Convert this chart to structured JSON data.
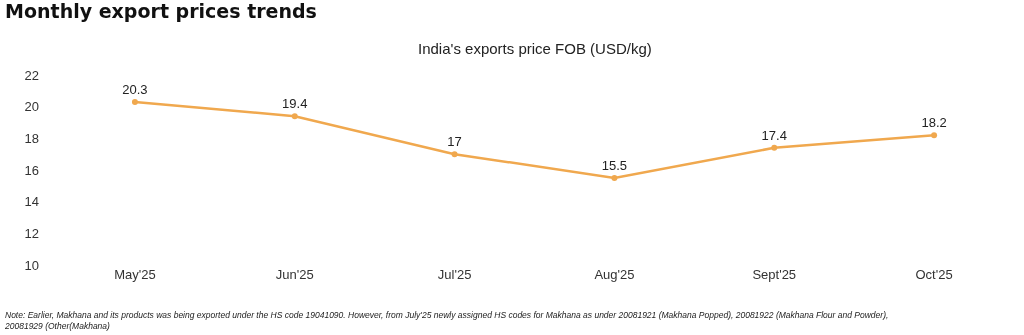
{
  "chart_data": {
    "type": "line",
    "title": "Monthly export prices trends",
    "subtitle": "India's exports price FOB (USD/kg)",
    "categories": [
      "May'25",
      "Jun'25",
      "Jul'25",
      "Aug'25",
      "Sept'25",
      "Oct'25"
    ],
    "series": [
      {
        "color": "#f0a84e",
        "values": [
          20.3,
          19.4,
          17,
          15.5,
          17.4,
          18.2
        ]
      }
    ],
    "ylim": [
      10,
      22
    ],
    "yticks": [
      10,
      12,
      14,
      16,
      18,
      20,
      22
    ],
    "grid": false,
    "marker": "circle",
    "line_style": "solid",
    "data_labels": true,
    "annotations": [
      "Note: Earlier, Makhana and its products was being exported under the HS code 19041090. However, from July'25 newly assigned HS codes for Makhana as under 20081921 (Makhana Popped), 20081922 (Makhana Flour and Powder), 20081929 (Other(Makhana)"
    ]
  }
}
